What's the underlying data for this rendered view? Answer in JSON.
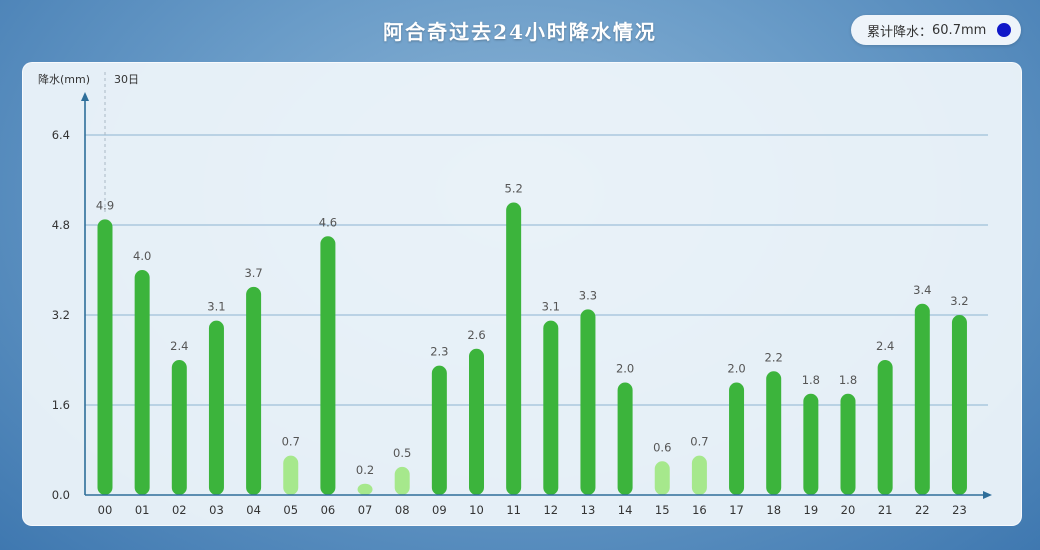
{
  "page": {
    "title": "阿合奇过去24小时降水情况",
    "total_label": "累计降水：",
    "total_value": "60.7mm"
  },
  "colors": {
    "bar_main": "#3cb43c",
    "bar_light": "#a6e88c",
    "axis": "#2e6e9a",
    "grid": "#8db4d2",
    "marker_dot": "#1018c8"
  },
  "chart_data": {
    "type": "bar",
    "ylabel": "降水(mm)",
    "date_marker": "30日",
    "categories": [
      "00",
      "01",
      "02",
      "03",
      "04",
      "05",
      "06",
      "07",
      "08",
      "09",
      "10",
      "11",
      "12",
      "13",
      "14",
      "15",
      "16",
      "17",
      "18",
      "19",
      "20",
      "21",
      "22",
      "23"
    ],
    "values": [
      4.9,
      4.0,
      2.4,
      3.1,
      3.7,
      0.7,
      4.6,
      0.2,
      0.5,
      2.3,
      2.6,
      5.2,
      3.1,
      3.3,
      2.0,
      0.6,
      0.7,
      2.0,
      2.2,
      1.8,
      1.8,
      2.4,
      3.4,
      3.2
    ],
    "value_labels": [
      "4.9",
      "4.0",
      "2.4",
      "3.1",
      "3.7",
      "0.7",
      "4.6",
      "0.2",
      "0.5",
      "2.3",
      "2.6",
      "5.2",
      "3.1",
      "3.3",
      "2.0",
      "0.6",
      "0.7",
      "2.0",
      "2.2",
      "1.8",
      "1.8",
      "2.4",
      "3.4",
      "3.2"
    ],
    "yticks": [
      "0.0",
      "1.6",
      "3.2",
      "4.8",
      "6.4"
    ],
    "ylim": [
      0,
      6.4
    ],
    "grid": true,
    "light_color_threshold": 1.0
  }
}
